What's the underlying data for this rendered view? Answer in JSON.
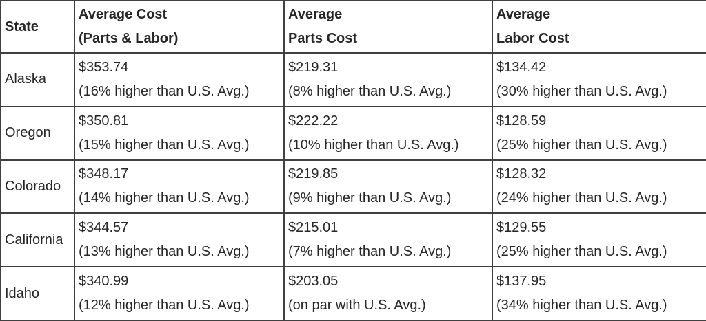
{
  "colors": {
    "border": "#404040",
    "text": "#262626",
    "background": "#ffffff"
  },
  "chart_data": {
    "type": "table",
    "columns": [
      {
        "line1": "State",
        "line2": ""
      },
      {
        "line1": "Average Cost",
        "line2": "(Parts & Labor)"
      },
      {
        "line1": "Average",
        "line2": "Parts Cost"
      },
      {
        "line1": "Average",
        "line2": "Labor Cost"
      }
    ],
    "rows": [
      {
        "state": "Alaska",
        "total": {
          "value": "$353.74",
          "note": "(16% higher than U.S. Avg.)"
        },
        "parts": {
          "value": "$219.31",
          "note": "(8% higher than U.S. Avg.)"
        },
        "labor": {
          "value": "$134.42",
          "note": "(30% higher than U.S. Avg.)"
        }
      },
      {
        "state": "Oregon",
        "total": {
          "value": "$350.81",
          "note": "(15% higher than U.S. Avg.)"
        },
        "parts": {
          "value": "$222.22",
          "note": "(10% higher than U.S. Avg.)"
        },
        "labor": {
          "value": "$128.59",
          "note": "(25% higher than U.S. Avg.)"
        }
      },
      {
        "state": "Colorado",
        "total": {
          "value": "$348.17",
          "note": "(14% higher than U.S. Avg.)"
        },
        "parts": {
          "value": "$219.85",
          "note": "(9% higher than U.S. Avg.)"
        },
        "labor": {
          "value": "$128.32",
          "note": "(24% higher than U.S. Avg.)"
        }
      },
      {
        "state": "California",
        "total": {
          "value": "$344.57",
          "note": "(13% higher than U.S. Avg.)"
        },
        "parts": {
          "value": "$215.01",
          "note": "(7% higher than U.S. Avg.)"
        },
        "labor": {
          "value": "$129.55",
          "note": "(25% higher than U.S. Avg.)"
        }
      },
      {
        "state": "Idaho",
        "total": {
          "value": "$340.99",
          "note": "(12% higher than U.S. Avg.)"
        },
        "parts": {
          "value": "$203.05",
          "note": "(on par with U.S. Avg.)"
        },
        "labor": {
          "value": "$137.95",
          "note": "(34% higher than U.S. Avg.)"
        }
      }
    ]
  }
}
